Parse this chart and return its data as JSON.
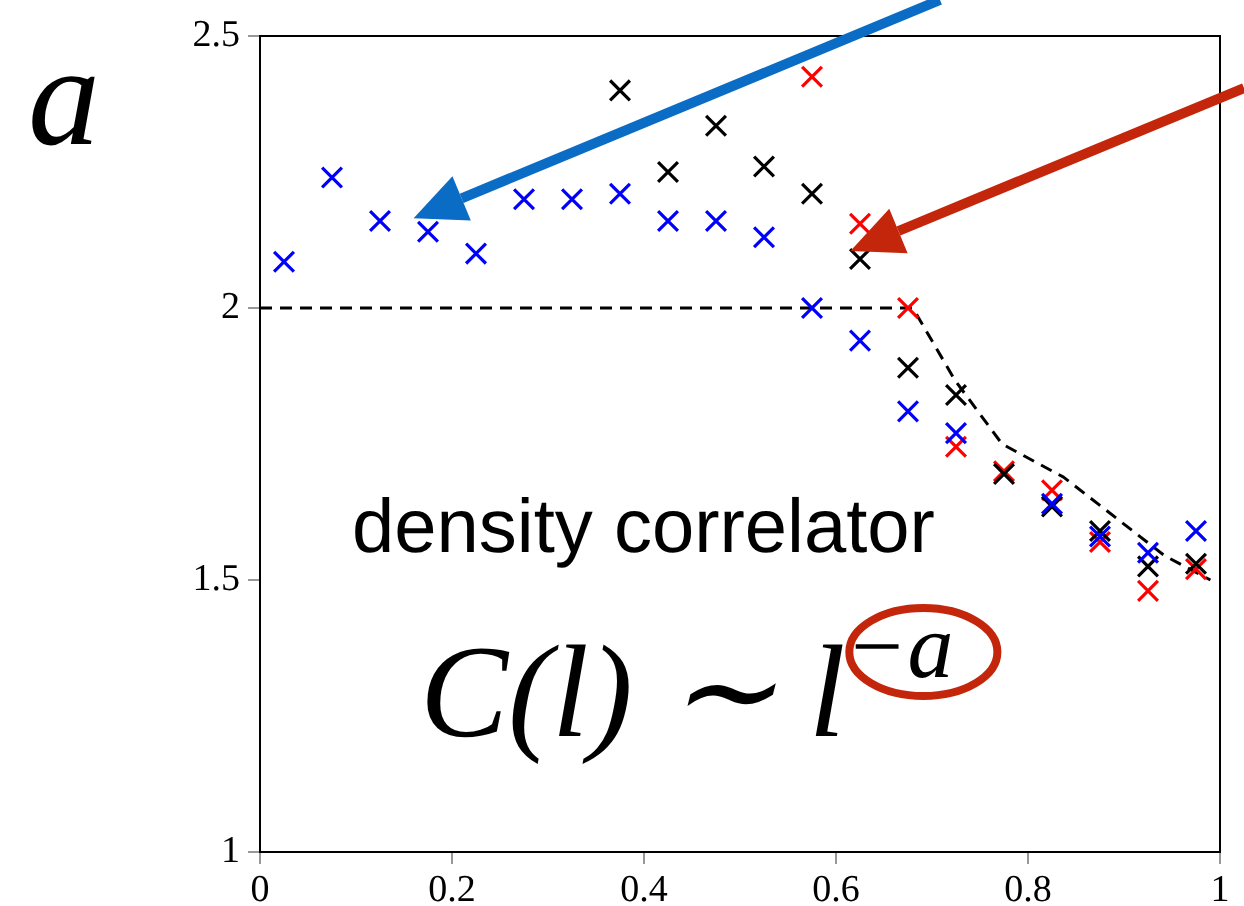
{
  "chart_data": {
    "type": "scatter",
    "marker": "cross",
    "grid": false,
    "legend": false,
    "xlim": [
      0,
      1
    ],
    "xticks": [
      0,
      0.2,
      0.4,
      0.6,
      0.8,
      1
    ],
    "ylim": [
      1,
      2.5
    ],
    "yticks": [
      1,
      1.5,
      2,
      2.5
    ],
    "annotations": [
      "a",
      "density correlator",
      "C(l) ∼ l$^{−a}$"
    ],
    "series": [
      {
        "color": "#0000ff",
        "x": [
          0.025,
          0.075,
          0.125,
          0.175,
          0.225,
          0.275,
          0.325,
          0.375,
          0.425,
          0.475,
          0.525,
          0.575,
          0.625,
          0.675,
          0.725,
          0.775,
          0.825,
          0.875,
          0.925,
          0.975
        ],
        "values": [
          2.085,
          2.24,
          2.16,
          2.14,
          2.1,
          2.2,
          2.2,
          2.21,
          2.16,
          2.16,
          2.13,
          2.0,
          1.94,
          1.81,
          1.77,
          null,
          1.64,
          1.58,
          1.55,
          1.59
        ]
      },
      {
        "color": "#000000",
        "x": [
          0.375,
          0.425,
          0.475,
          0.525,
          0.575,
          0.625,
          0.675,
          0.725,
          0.775,
          0.825,
          0.875,
          0.925,
          0.975
        ],
        "values": [
          2.4,
          2.25,
          2.335,
          2.26,
          2.21,
          2.09,
          1.89,
          1.84,
          1.695,
          1.635,
          1.59,
          1.525,
          1.53
        ]
      },
      {
        "color": "#ff0000",
        "x": [
          0.575,
          0.625,
          0.675,
          0.725,
          0.775,
          0.825,
          0.875,
          0.925,
          0.975
        ],
        "values": [
          2.425,
          2.155,
          2.0,
          1.745,
          1.7,
          1.665,
          1.57,
          1.48,
          1.52
        ]
      },
      {
        "type": "line",
        "marker": "none",
        "line_style": "dashed",
        "color": "#000000",
        "x": [
          0,
          0.68,
          0.724,
          0.773,
          0.837,
          0.894,
          0.942,
          0.99
        ],
        "values": [
          2.0,
          2.0,
          1.867,
          1.75,
          1.689,
          1.611,
          1.545,
          1.5
        ]
      }
    ]
  }
}
